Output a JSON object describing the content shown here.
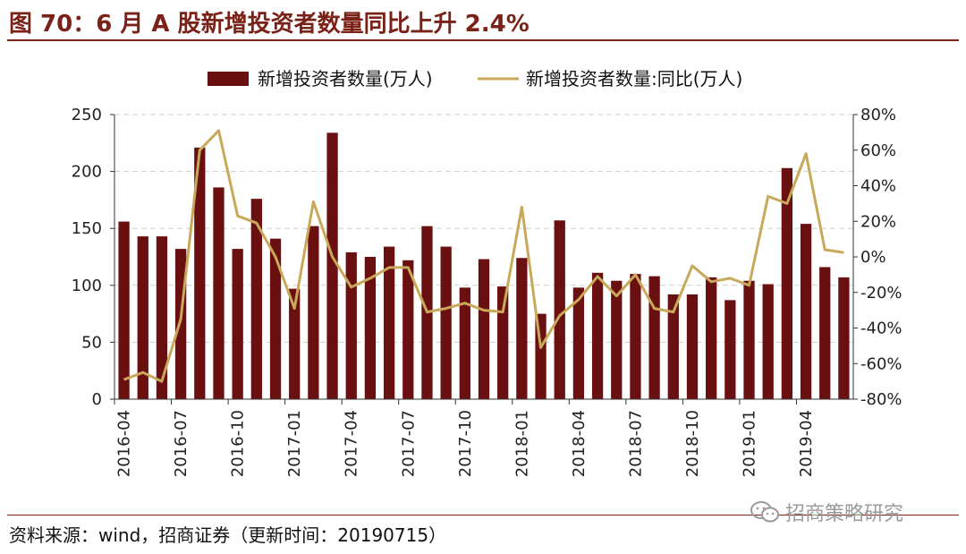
{
  "header": {
    "title": "图 70：6 月 A 股新增投资者数量同比上升 2.4%"
  },
  "footer": {
    "source": "资料来源：wind，招商证券（更新时间：20190715）",
    "watermark": "招商策略研究",
    "watermark_icon": "wechat-icon"
  },
  "colors": {
    "bar": "#6b1010",
    "line": "#c8a95a",
    "title": "#7a2218",
    "grid": "#cfcfcf"
  },
  "chart_data": {
    "type": "bar",
    "title": "",
    "legend_position": "top",
    "grid": true,
    "x": [
      "2016-04",
      "2016-05",
      "2016-06",
      "2016-07",
      "2016-08",
      "2016-09",
      "2016-10",
      "2016-11",
      "2016-12",
      "2017-01",
      "2017-02",
      "2017-03",
      "2017-04",
      "2017-05",
      "2017-06",
      "2017-07",
      "2017-08",
      "2017-09",
      "2017-10",
      "2017-11",
      "2017-12",
      "2018-01",
      "2018-02",
      "2018-03",
      "2018-04",
      "2018-05",
      "2018-06",
      "2018-07",
      "2018-08",
      "2018-09",
      "2018-10",
      "2018-11",
      "2018-12",
      "2019-01",
      "2019-02",
      "2019-03",
      "2019-04",
      "2019-05",
      "2019-06"
    ],
    "x_tick_labels": [
      "2016-04",
      "2016-07",
      "2016-10",
      "2017-01",
      "2017-04",
      "2017-07",
      "2017-10",
      "2018-01",
      "2018-04",
      "2018-07",
      "2018-10",
      "2019-01",
      "2019-04"
    ],
    "y_left": {
      "ylim": [
        0,
        250
      ],
      "ticks": [
        "0",
        "50",
        "100",
        "150",
        "200",
        "250"
      ]
    },
    "y_right": {
      "ylim": [
        -80,
        80
      ],
      "ticks": [
        "-80%",
        "-60%",
        "-40%",
        "-20%",
        "0%",
        "20%",
        "40%",
        "60%",
        "80%"
      ]
    },
    "series": [
      {
        "name": "新增投资者数量(万人)",
        "type": "bar",
        "axis": "left",
        "values": [
          156,
          143,
          143,
          132,
          221,
          186,
          132,
          176,
          141,
          97,
          152,
          234,
          129,
          125,
          134,
          122,
          152,
          134,
          98,
          123,
          99,
          124,
          75,
          157,
          98,
          111,
          104,
          110,
          108,
          92,
          92,
          107,
          87,
          104,
          101,
          203,
          154,
          116,
          107
        ]
      },
      {
        "name": "新增投资者数量:同比(万人)",
        "type": "line",
        "axis": "right",
        "values": [
          -69,
          -65,
          -70,
          -35,
          60,
          71,
          23,
          19,
          0,
          -29,
          31,
          0,
          -17,
          -12,
          -6,
          -6,
          -31,
          -29,
          -26,
          -30,
          -31,
          28,
          -51,
          -33,
          -24,
          -11,
          -22,
          -10,
          -29,
          -31,
          -5,
          -14,
          -12,
          -16,
          34,
          30,
          58,
          4,
          2.4
        ]
      }
    ]
  }
}
